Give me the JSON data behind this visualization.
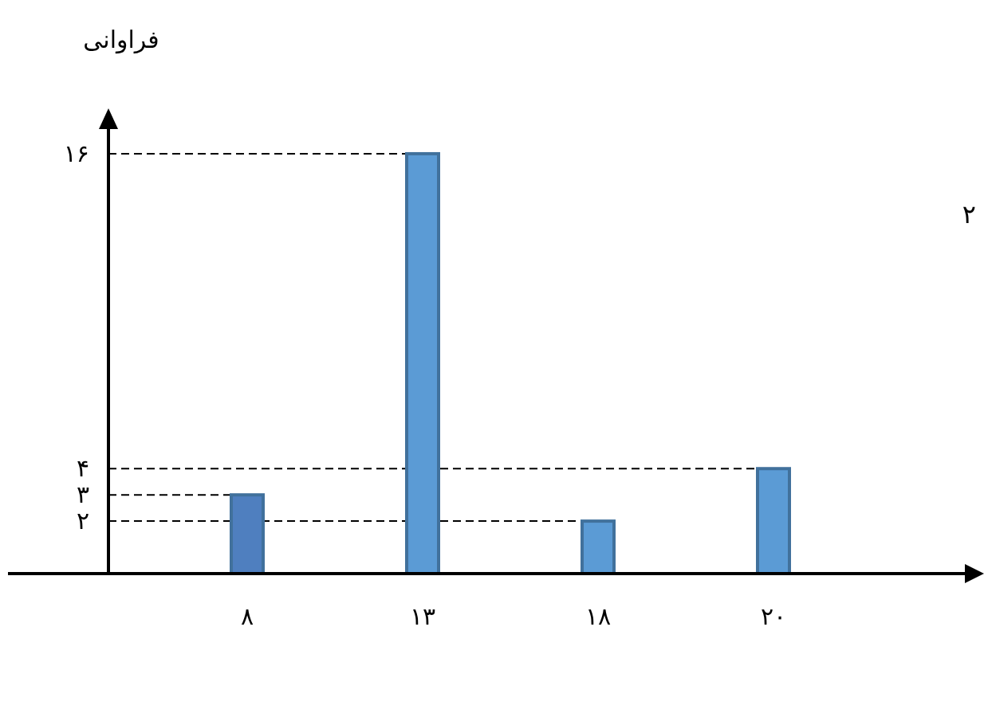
{
  "chart_data": {
    "type": "bar",
    "ylabel": "فراوانی",
    "categories": [
      "۸",
      "۱۳",
      "۱۸",
      "۲۰"
    ],
    "values": [
      3,
      16,
      2,
      4
    ],
    "colors": [
      "#4f7fbf",
      "#5b9bd5",
      "#5b9bd5",
      "#5b9bd5"
    ],
    "ylim": [
      0,
      17
    ],
    "yticks": [
      {
        "value": 2,
        "label": "۲"
      },
      {
        "value": 3,
        "label": "۳"
      },
      {
        "value": 4,
        "label": "۴"
      },
      {
        "value": 16,
        "label": "۱۶"
      }
    ],
    "ref_lines": [
      {
        "axis": "y",
        "value": 3,
        "color": "#000000",
        "line_style": "dashed"
      },
      {
        "axis": "y",
        "value": 16,
        "color": "#000000",
        "line_style": "dashed"
      },
      {
        "axis": "y",
        "value": 2,
        "color": "#000000",
        "line_style": "dashed"
      },
      {
        "axis": "y",
        "value": 4,
        "color": "#000000",
        "line_style": "dashed"
      }
    ],
    "annotations": [
      "۲"
    ]
  }
}
